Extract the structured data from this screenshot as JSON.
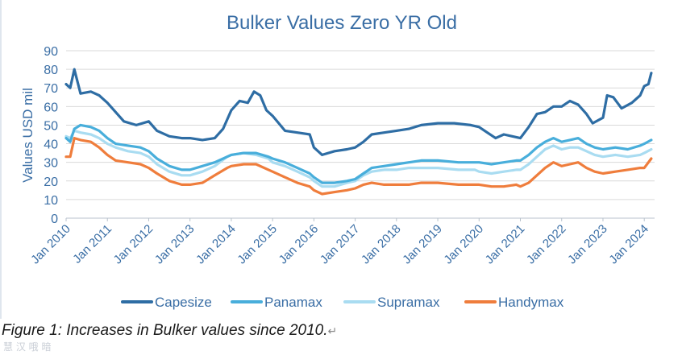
{
  "chart_data": {
    "type": "line",
    "title": "Bulker Values Zero YR Old",
    "ylabel": "Values USD mil",
    "xlabel": "",
    "ylim": [
      0,
      90
    ],
    "yticks": [
      0,
      10,
      20,
      30,
      40,
      50,
      60,
      70,
      80,
      90
    ],
    "xlim": [
      2010.0,
      2024.25
    ],
    "x_tick_labels": [
      "Jan 2010",
      "Jan 2011",
      "Jan 2012",
      "Jan 2013",
      "Jan 2014",
      "Jan 2015",
      "Jan 2016",
      "Jan 2017",
      "Jan 2018",
      "Jan 2019",
      "Jan 2020",
      "Jan 2021",
      "Jan 2022",
      "Jan 2023",
      "Jan 2024"
    ],
    "x_tick_values": [
      2010,
      2011,
      2012,
      2013,
      2014,
      2015,
      2016,
      2017,
      2018,
      2019,
      2020,
      2021,
      2022,
      2023,
      2024
    ],
    "grid": "horizontal",
    "legend_position": "bottom",
    "series": [
      {
        "name": "Capesize",
        "color": "#2e6da4",
        "points": [
          [
            2010.0,
            72
          ],
          [
            2010.1,
            70
          ],
          [
            2010.2,
            80
          ],
          [
            2010.35,
            67
          ],
          [
            2010.6,
            68
          ],
          [
            2010.8,
            66
          ],
          [
            2011.0,
            62
          ],
          [
            2011.2,
            57
          ],
          [
            2011.4,
            52
          ],
          [
            2011.7,
            50
          ],
          [
            2012.0,
            52
          ],
          [
            2012.2,
            47
          ],
          [
            2012.5,
            44
          ],
          [
            2012.8,
            43
          ],
          [
            2013.0,
            43
          ],
          [
            2013.3,
            42
          ],
          [
            2013.6,
            43
          ],
          [
            2013.8,
            48
          ],
          [
            2014.0,
            58
          ],
          [
            2014.2,
            63
          ],
          [
            2014.4,
            62
          ],
          [
            2014.55,
            68
          ],
          [
            2014.7,
            66
          ],
          [
            2014.85,
            58
          ],
          [
            2015.0,
            55
          ],
          [
            2015.3,
            47
          ],
          [
            2015.6,
            46
          ],
          [
            2015.9,
            45
          ],
          [
            2016.0,
            38
          ],
          [
            2016.2,
            34
          ],
          [
            2016.5,
            36
          ],
          [
            2016.8,
            37
          ],
          [
            2017.0,
            38
          ],
          [
            2017.2,
            41
          ],
          [
            2017.4,
            45
          ],
          [
            2017.7,
            46
          ],
          [
            2018.0,
            47
          ],
          [
            2018.3,
            48
          ],
          [
            2018.6,
            50
          ],
          [
            2019.0,
            51
          ],
          [
            2019.4,
            51
          ],
          [
            2019.8,
            50
          ],
          [
            2020.0,
            49
          ],
          [
            2020.2,
            46
          ],
          [
            2020.4,
            43
          ],
          [
            2020.6,
            45
          ],
          [
            2020.8,
            44
          ],
          [
            2021.0,
            43
          ],
          [
            2021.2,
            49
          ],
          [
            2021.4,
            56
          ],
          [
            2021.6,
            57
          ],
          [
            2021.8,
            60
          ],
          [
            2022.0,
            60
          ],
          [
            2022.2,
            63
          ],
          [
            2022.4,
            61
          ],
          [
            2022.6,
            56
          ],
          [
            2022.75,
            51
          ],
          [
            2023.0,
            54
          ],
          [
            2023.1,
            66
          ],
          [
            2023.25,
            65
          ],
          [
            2023.45,
            59
          ],
          [
            2023.7,
            62
          ],
          [
            2023.9,
            66
          ],
          [
            2024.0,
            71
          ],
          [
            2024.1,
            72
          ],
          [
            2024.17,
            78
          ]
        ]
      },
      {
        "name": "Panamax",
        "color": "#48aedb",
        "points": [
          [
            2010.0,
            43
          ],
          [
            2010.1,
            41
          ],
          [
            2010.2,
            48
          ],
          [
            2010.35,
            50
          ],
          [
            2010.6,
            49
          ],
          [
            2010.8,
            47
          ],
          [
            2011.0,
            43
          ],
          [
            2011.2,
            40
          ],
          [
            2011.5,
            39
          ],
          [
            2011.8,
            38
          ],
          [
            2012.0,
            36
          ],
          [
            2012.2,
            32
          ],
          [
            2012.5,
            28
          ],
          [
            2012.8,
            26
          ],
          [
            2013.0,
            26
          ],
          [
            2013.3,
            28
          ],
          [
            2013.6,
            30
          ],
          [
            2013.9,
            33
          ],
          [
            2014.0,
            34
          ],
          [
            2014.3,
            35
          ],
          [
            2014.6,
            35
          ],
          [
            2014.9,
            33
          ],
          [
            2015.0,
            32
          ],
          [
            2015.3,
            30
          ],
          [
            2015.6,
            27
          ],
          [
            2015.9,
            24
          ],
          [
            2016.0,
            22
          ],
          [
            2016.2,
            19
          ],
          [
            2016.5,
            19
          ],
          [
            2016.8,
            20
          ],
          [
            2017.0,
            21
          ],
          [
            2017.2,
            24
          ],
          [
            2017.4,
            27
          ],
          [
            2017.7,
            28
          ],
          [
            2018.0,
            29
          ],
          [
            2018.3,
            30
          ],
          [
            2018.6,
            31
          ],
          [
            2019.0,
            31
          ],
          [
            2019.5,
            30
          ],
          [
            2019.9,
            30
          ],
          [
            2020.0,
            30
          ],
          [
            2020.3,
            29
          ],
          [
            2020.6,
            30
          ],
          [
            2020.9,
            31
          ],
          [
            2021.0,
            31
          ],
          [
            2021.2,
            34
          ],
          [
            2021.4,
            38
          ],
          [
            2021.6,
            41
          ],
          [
            2021.8,
            43
          ],
          [
            2022.0,
            41
          ],
          [
            2022.2,
            42
          ],
          [
            2022.4,
            43
          ],
          [
            2022.6,
            40
          ],
          [
            2022.8,
            38
          ],
          [
            2023.0,
            37
          ],
          [
            2023.3,
            38
          ],
          [
            2023.6,
            37
          ],
          [
            2023.9,
            39
          ],
          [
            2024.0,
            40
          ],
          [
            2024.17,
            42
          ]
        ]
      },
      {
        "name": "Supramax",
        "color": "#a9dcf1",
        "points": [
          [
            2010.0,
            44
          ],
          [
            2010.1,
            43
          ],
          [
            2010.2,
            47
          ],
          [
            2010.35,
            46
          ],
          [
            2010.6,
            45
          ],
          [
            2010.8,
            43
          ],
          [
            2011.0,
            40
          ],
          [
            2011.2,
            38
          ],
          [
            2011.5,
            36
          ],
          [
            2011.8,
            35
          ],
          [
            2012.0,
            33
          ],
          [
            2012.2,
            29
          ],
          [
            2012.5,
            25
          ],
          [
            2012.8,
            23
          ],
          [
            2013.0,
            23
          ],
          [
            2013.3,
            25
          ],
          [
            2013.6,
            28
          ],
          [
            2013.9,
            33
          ],
          [
            2014.0,
            34
          ],
          [
            2014.3,
            35
          ],
          [
            2014.6,
            34
          ],
          [
            2014.9,
            32
          ],
          [
            2015.0,
            30
          ],
          [
            2015.3,
            28
          ],
          [
            2015.6,
            25
          ],
          [
            2015.9,
            22
          ],
          [
            2016.0,
            20
          ],
          [
            2016.2,
            17
          ],
          [
            2016.5,
            17
          ],
          [
            2016.8,
            19
          ],
          [
            2017.0,
            20
          ],
          [
            2017.2,
            23
          ],
          [
            2017.4,
            25
          ],
          [
            2017.7,
            26
          ],
          [
            2018.0,
            26
          ],
          [
            2018.3,
            27
          ],
          [
            2018.6,
            27
          ],
          [
            2019.0,
            27
          ],
          [
            2019.5,
            26
          ],
          [
            2019.9,
            26
          ],
          [
            2020.0,
            25
          ],
          [
            2020.3,
            24
          ],
          [
            2020.6,
            25
          ],
          [
            2020.9,
            26
          ],
          [
            2021.0,
            26
          ],
          [
            2021.2,
            29
          ],
          [
            2021.4,
            33
          ],
          [
            2021.6,
            37
          ],
          [
            2021.8,
            39
          ],
          [
            2022.0,
            37
          ],
          [
            2022.2,
            38
          ],
          [
            2022.4,
            38
          ],
          [
            2022.6,
            36
          ],
          [
            2022.8,
            34
          ],
          [
            2023.0,
            33
          ],
          [
            2023.3,
            34
          ],
          [
            2023.6,
            33
          ],
          [
            2023.9,
            34
          ],
          [
            2024.0,
            35
          ],
          [
            2024.17,
            37
          ]
        ]
      },
      {
        "name": "Handymax",
        "color": "#ef7d3c",
        "points": [
          [
            2010.0,
            33
          ],
          [
            2010.1,
            33
          ],
          [
            2010.2,
            43
          ],
          [
            2010.35,
            42
          ],
          [
            2010.6,
            41
          ],
          [
            2010.8,
            38
          ],
          [
            2011.0,
            34
          ],
          [
            2011.2,
            31
          ],
          [
            2011.5,
            30
          ],
          [
            2011.8,
            29
          ],
          [
            2012.0,
            27
          ],
          [
            2012.2,
            24
          ],
          [
            2012.5,
            20
          ],
          [
            2012.8,
            18
          ],
          [
            2013.0,
            18
          ],
          [
            2013.3,
            19
          ],
          [
            2013.6,
            23
          ],
          [
            2013.9,
            27
          ],
          [
            2014.0,
            28
          ],
          [
            2014.3,
            29
          ],
          [
            2014.6,
            29
          ],
          [
            2014.9,
            26
          ],
          [
            2015.0,
            25
          ],
          [
            2015.3,
            22
          ],
          [
            2015.6,
            19
          ],
          [
            2015.9,
            17
          ],
          [
            2016.0,
            15
          ],
          [
            2016.2,
            13
          ],
          [
            2016.5,
            14
          ],
          [
            2016.8,
            15
          ],
          [
            2017.0,
            16
          ],
          [
            2017.2,
            18
          ],
          [
            2017.4,
            19
          ],
          [
            2017.7,
            18
          ],
          [
            2018.0,
            18
          ],
          [
            2018.3,
            18
          ],
          [
            2018.6,
            19
          ],
          [
            2019.0,
            19
          ],
          [
            2019.5,
            18
          ],
          [
            2019.9,
            18
          ],
          [
            2020.0,
            18
          ],
          [
            2020.3,
            17
          ],
          [
            2020.6,
            17
          ],
          [
            2020.9,
            18
          ],
          [
            2021.0,
            17
          ],
          [
            2021.2,
            19
          ],
          [
            2021.4,
            23
          ],
          [
            2021.6,
            27
          ],
          [
            2021.8,
            30
          ],
          [
            2022.0,
            28
          ],
          [
            2022.2,
            29
          ],
          [
            2022.4,
            30
          ],
          [
            2022.6,
            27
          ],
          [
            2022.8,
            25
          ],
          [
            2023.0,
            24
          ],
          [
            2023.3,
            25
          ],
          [
            2023.6,
            26
          ],
          [
            2023.9,
            27
          ],
          [
            2024.0,
            27
          ],
          [
            2024.17,
            32
          ]
        ]
      }
    ]
  },
  "caption": {
    "text": "Figure 1: Increases in Bulker values since 2010.",
    "mark": "↵"
  },
  "watermark": "慧 汉 哦 暗"
}
